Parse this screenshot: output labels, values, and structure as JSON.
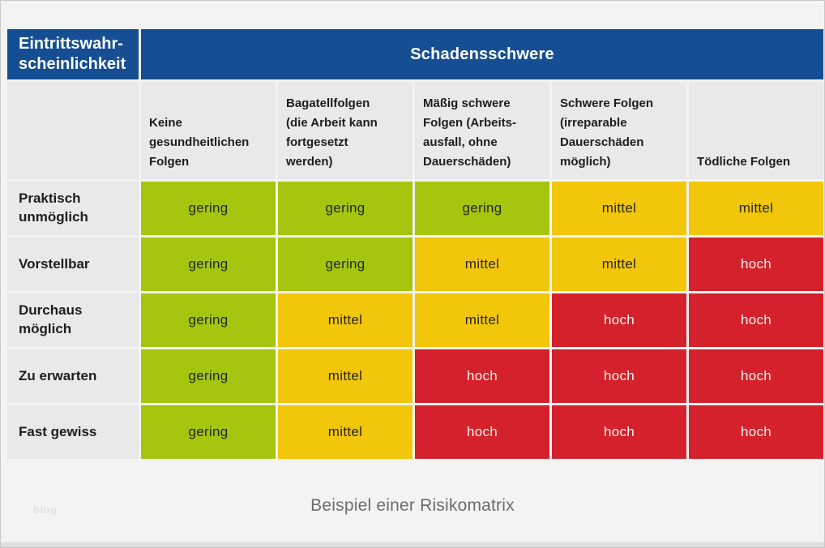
{
  "page": {
    "caption": "Beispiel einer Risikomatrix",
    "watermark": "blog",
    "background_color": "#f3f3f3",
    "border_color": "#c8c8c8"
  },
  "colors": {
    "header_blue": "#154e93",
    "header_gray": "#e9e9e9",
    "gering": "#a6c50f",
    "mittel": "#f2c60b",
    "hoch": "#d4212c"
  },
  "matrix": {
    "row_axis_title": "Eintrittswahr-\nscheinlichkeit",
    "col_axis_title": "Schadensschwere",
    "columns": [
      "Keine\ngesundheitlichen\nFolgen",
      "Bagatellfolgen\n(die Arbeit kann\nfortgesetzt\nwerden)",
      "Mäßig schwere\nFolgen (Arbeits-\nausfall, ohne\nDauerschäden)",
      "Schwere Folgen\n(irreparable\nDauerschäden\nmöglich)",
      "Tödliche Folgen"
    ],
    "rows": [
      {
        "label": "Praktisch\nunmöglich",
        "values": [
          "gering",
          "gering",
          "gering",
          "mittel",
          "mittel"
        ]
      },
      {
        "label": "Vorstellbar",
        "values": [
          "gering",
          "gering",
          "mittel",
          "mittel",
          "hoch"
        ]
      },
      {
        "label": "Durchaus\nmöglich",
        "values": [
          "gering",
          "mittel",
          "mittel",
          "hoch",
          "hoch"
        ]
      },
      {
        "label": "Zu erwarten",
        "values": [
          "gering",
          "mittel",
          "hoch",
          "hoch",
          "hoch"
        ]
      },
      {
        "label": "Fast gewiss",
        "values": [
          "gering",
          "mittel",
          "hoch",
          "hoch",
          "hoch"
        ]
      }
    ]
  },
  "chart_data": {
    "type": "heatmap",
    "title": "Beispiel einer Risikomatrix",
    "x_axis_label": "Schadensschwere",
    "y_axis_label": "Eintrittswahrscheinlichkeit",
    "x_categories": [
      "Keine gesundheitlichen Folgen",
      "Bagatellfolgen (die Arbeit kann fortgesetzt werden)",
      "Mäßig schwere Folgen (Arbeitsausfall, ohne Dauerschäden)",
      "Schwere Folgen (irreparable Dauerschäden möglich)",
      "Tödliche Folgen"
    ],
    "y_categories": [
      "Praktisch unmöglich",
      "Vorstellbar",
      "Durchaus möglich",
      "Zu erwarten",
      "Fast gewiss"
    ],
    "values": [
      [
        "gering",
        "gering",
        "gering",
        "mittel",
        "mittel"
      ],
      [
        "gering",
        "gering",
        "mittel",
        "mittel",
        "hoch"
      ],
      [
        "gering",
        "mittel",
        "mittel",
        "hoch",
        "hoch"
      ],
      [
        "gering",
        "mittel",
        "hoch",
        "hoch",
        "hoch"
      ],
      [
        "gering",
        "mittel",
        "hoch",
        "hoch",
        "hoch"
      ]
    ],
    "legend": {
      "gering": "#a6c50f",
      "mittel": "#f2c60b",
      "hoch": "#d4212c"
    }
  }
}
